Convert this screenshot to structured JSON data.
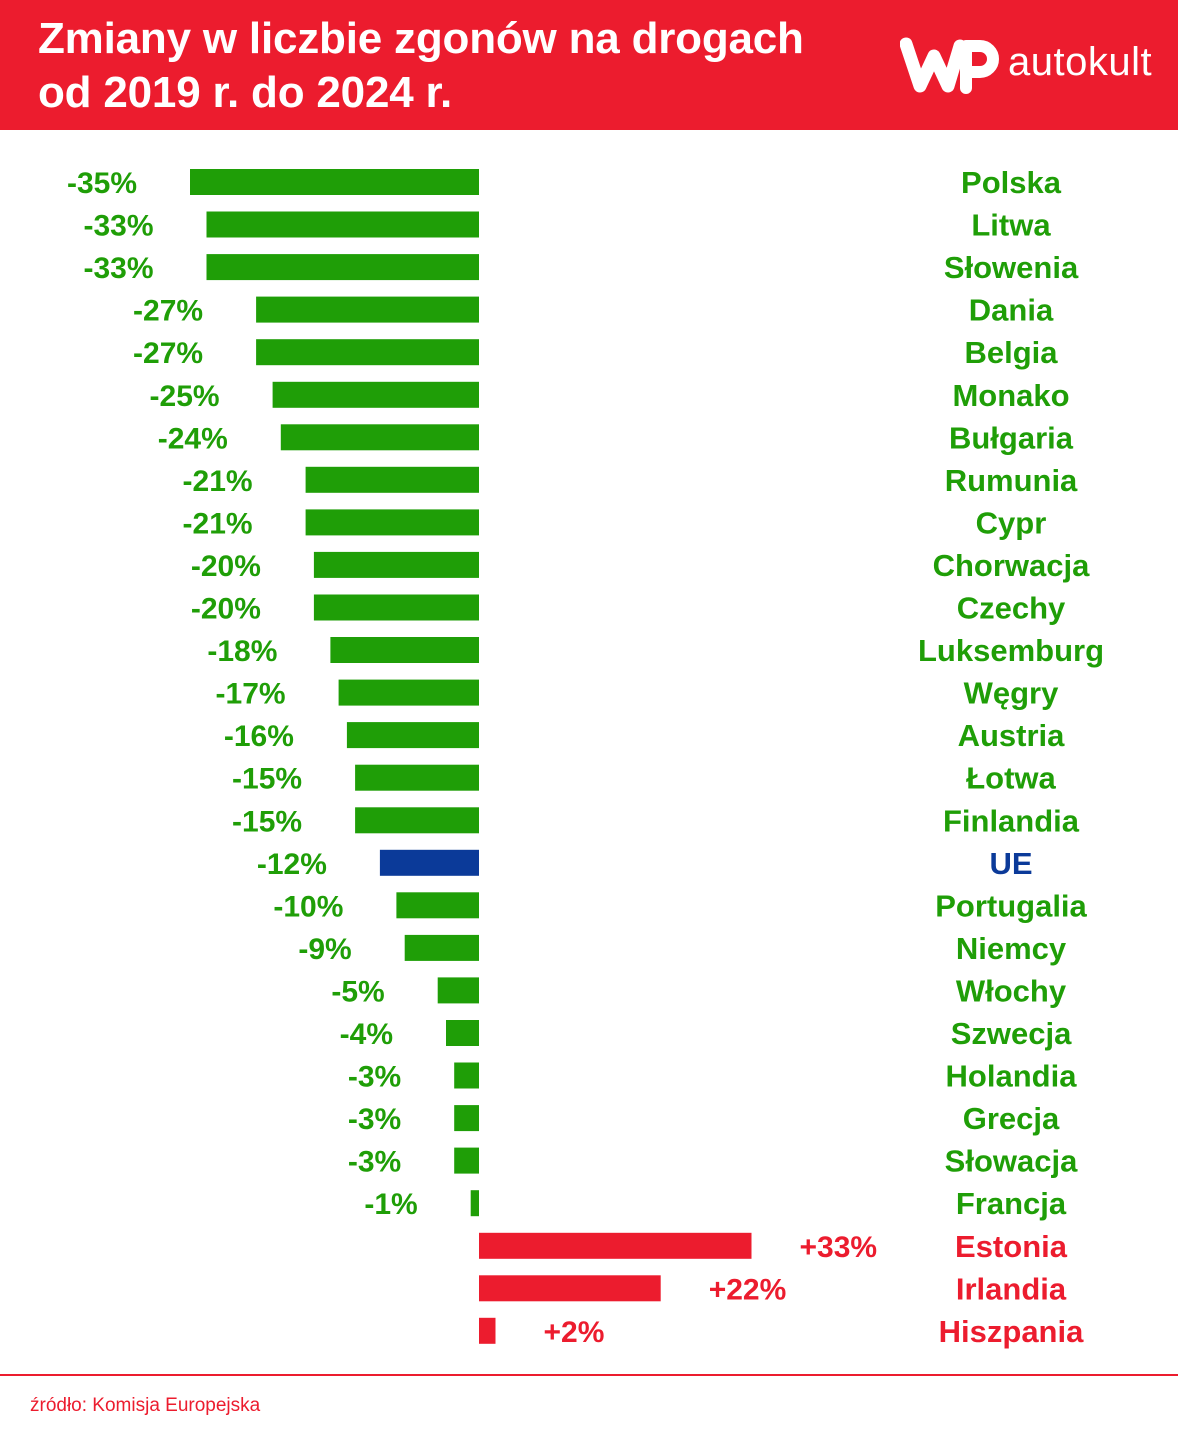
{
  "header": {
    "title_line1": "Zmiany w liczbie zgonów na drogach",
    "title_line2": "od 2019 r. do 2024 r.",
    "logo_text": "autokult",
    "logo_icon": "wp-logo-icon"
  },
  "colors": {
    "header_bg": "#ec1c2e",
    "negative": "#1f9e07",
    "positive": "#ec1c2e",
    "eu": "#0b3a99",
    "text_white": "#ffffff"
  },
  "footer": {
    "source": "źródło: Komisja Europejska"
  },
  "chart_data": {
    "type": "bar",
    "orientation": "horizontal",
    "title": "Zmiany w liczbie zgonów na drogach od 2019 r. do 2024 r.",
    "unit": "%",
    "xlim": [
      -35,
      33
    ],
    "grid": false,
    "categories": [
      "Polska",
      "Litwa",
      "Słowenia",
      "Dania",
      "Belgia",
      "Monako",
      "Bułgaria",
      "Rumunia",
      "Cypr",
      "Chorwacja",
      "Czechy",
      "Luksemburg",
      "Węgry",
      "Austria",
      "Łotwa",
      "Finlandia",
      "UE",
      "Portugalia",
      "Niemcy",
      "Włochy",
      "Szwecja",
      "Holandia",
      "Grecja",
      "Słowacja",
      "Francja",
      "Estonia",
      "Irlandia",
      "Hiszpania"
    ],
    "values": [
      -35,
      -33,
      -33,
      -27,
      -27,
      -25,
      -24,
      -21,
      -21,
      -20,
      -20,
      -18,
      -17,
      -16,
      -15,
      -15,
      -12,
      -10,
      -9,
      -5,
      -4,
      -3,
      -3,
      -3,
      -1,
      33,
      22,
      2
    ],
    "labels": [
      "-35%",
      "-33%",
      "-33%",
      "-27%",
      "-27%",
      "-25%",
      "-24%",
      "-21%",
      "-21%",
      "-20%",
      "-20%",
      "-18%",
      "-17%",
      "-16%",
      "-15%",
      "-15%",
      "-12%",
      "-10%",
      "-9%",
      "-5%",
      "-4%",
      "-3%",
      "-3%",
      "-3%",
      "-1%",
      "+33%",
      "+22%",
      "+2%"
    ],
    "highlight": "UE"
  }
}
